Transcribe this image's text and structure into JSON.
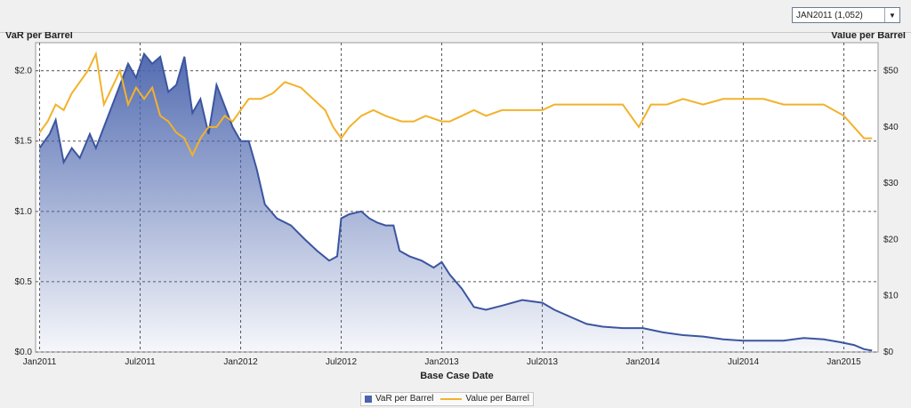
{
  "selector": {
    "value": "JAN2011 (1,052)",
    "arrow": "▼"
  },
  "chart_data": {
    "type": "line",
    "ylabel_left": "VaR per Barrel",
    "ylabel_right": "Value per Barrel",
    "xlabel": "Base Case Date",
    "y_left_range": [
      0,
      2.2
    ],
    "y_right_range": [
      0,
      55
    ],
    "y_left_ticks": [
      {
        "v": 0,
        "label": "$0.0"
      },
      {
        "v": 0.5,
        "label": "$0.5"
      },
      {
        "v": 1.0,
        "label": "$1.0"
      },
      {
        "v": 1.5,
        "label": "$1.5"
      },
      {
        "v": 2.0,
        "label": "$2.0"
      }
    ],
    "y_right_ticks": [
      {
        "v": 0,
        "label": "$0"
      },
      {
        "v": 10,
        "label": "$10"
      },
      {
        "v": 20,
        "label": "$20"
      },
      {
        "v": 30,
        "label": "$30"
      },
      {
        "v": 40,
        "label": "$40"
      },
      {
        "v": 50,
        "label": "$50"
      }
    ],
    "x_range": [
      2010.98,
      2015.17
    ],
    "x_ticks": [
      {
        "v": 2011.0,
        "label": "Jan2011"
      },
      {
        "v": 2011.5,
        "label": "Jul2011"
      },
      {
        "v": 2012.0,
        "label": "Jan2012"
      },
      {
        "v": 2012.5,
        "label": "Jul2012"
      },
      {
        "v": 2013.0,
        "label": "Jan2013"
      },
      {
        "v": 2013.5,
        "label": "Jul2013"
      },
      {
        "v": 2014.0,
        "label": "Jan2014"
      },
      {
        "v": 2014.5,
        "label": "Jul2014"
      },
      {
        "v": 2015.0,
        "label": "Jan2015"
      }
    ],
    "grid": true,
    "legend": "bottom-center",
    "series": [
      {
        "name": "VaR per Barrel",
        "axis": "left",
        "color": "#4a64ad",
        "style": "area",
        "points": [
          [
            2011.0,
            1.45
          ],
          [
            2011.05,
            1.55
          ],
          [
            2011.08,
            1.65
          ],
          [
            2011.12,
            1.35
          ],
          [
            2011.16,
            1.45
          ],
          [
            2011.2,
            1.38
          ],
          [
            2011.25,
            1.55
          ],
          [
            2011.28,
            1.45
          ],
          [
            2011.32,
            1.6
          ],
          [
            2011.36,
            1.75
          ],
          [
            2011.4,
            1.9
          ],
          [
            2011.44,
            2.05
          ],
          [
            2011.48,
            1.95
          ],
          [
            2011.52,
            2.12
          ],
          [
            2011.56,
            2.05
          ],
          [
            2011.6,
            2.1
          ],
          [
            2011.64,
            1.85
          ],
          [
            2011.68,
            1.9
          ],
          [
            2011.72,
            2.1
          ],
          [
            2011.76,
            1.7
          ],
          [
            2011.8,
            1.8
          ],
          [
            2011.84,
            1.55
          ],
          [
            2011.88,
            1.9
          ],
          [
            2011.92,
            1.75
          ],
          [
            2011.96,
            1.6
          ],
          [
            2012.0,
            1.5
          ],
          [
            2012.04,
            1.5
          ],
          [
            2012.08,
            1.3
          ],
          [
            2012.12,
            1.05
          ],
          [
            2012.18,
            0.95
          ],
          [
            2012.25,
            0.9
          ],
          [
            2012.32,
            0.8
          ],
          [
            2012.38,
            0.72
          ],
          [
            2012.44,
            0.65
          ],
          [
            2012.48,
            0.68
          ],
          [
            2012.5,
            0.95
          ],
          [
            2012.54,
            0.98
          ],
          [
            2012.6,
            1.0
          ],
          [
            2012.64,
            0.95
          ],
          [
            2012.68,
            0.92
          ],
          [
            2012.72,
            0.9
          ],
          [
            2012.76,
            0.9
          ],
          [
            2012.79,
            0.72
          ],
          [
            2012.84,
            0.68
          ],
          [
            2012.9,
            0.65
          ],
          [
            2012.96,
            0.6
          ],
          [
            2013.0,
            0.64
          ],
          [
            2013.04,
            0.55
          ],
          [
            2013.1,
            0.45
          ],
          [
            2013.16,
            0.32
          ],
          [
            2013.22,
            0.3
          ],
          [
            2013.3,
            0.33
          ],
          [
            2013.4,
            0.37
          ],
          [
            2013.5,
            0.35
          ],
          [
            2013.56,
            0.3
          ],
          [
            2013.64,
            0.25
          ],
          [
            2013.72,
            0.2
          ],
          [
            2013.8,
            0.18
          ],
          [
            2013.9,
            0.17
          ],
          [
            2014.0,
            0.17
          ],
          [
            2014.1,
            0.14
          ],
          [
            2014.2,
            0.12
          ],
          [
            2014.3,
            0.11
          ],
          [
            2014.4,
            0.09
          ],
          [
            2014.5,
            0.08
          ],
          [
            2014.6,
            0.08
          ],
          [
            2014.7,
            0.08
          ],
          [
            2014.8,
            0.1
          ],
          [
            2014.9,
            0.09
          ],
          [
            2014.98,
            0.07
          ],
          [
            2015.05,
            0.05
          ],
          [
            2015.1,
            0.02
          ],
          [
            2015.14,
            0.01
          ]
        ]
      },
      {
        "name": "Value per Barrel",
        "axis": "right",
        "color": "#f2b22a",
        "style": "line",
        "points": [
          [
            2011.0,
            39
          ],
          [
            2011.04,
            41
          ],
          [
            2011.08,
            44
          ],
          [
            2011.12,
            43
          ],
          [
            2011.16,
            46
          ],
          [
            2011.2,
            48
          ],
          [
            2011.24,
            50
          ],
          [
            2011.28,
            53
          ],
          [
            2011.32,
            44
          ],
          [
            2011.36,
            47
          ],
          [
            2011.4,
            50
          ],
          [
            2011.44,
            44
          ],
          [
            2011.48,
            47
          ],
          [
            2011.52,
            45
          ],
          [
            2011.56,
            47
          ],
          [
            2011.6,
            42
          ],
          [
            2011.64,
            41
          ],
          [
            2011.68,
            39
          ],
          [
            2011.72,
            38
          ],
          [
            2011.76,
            35
          ],
          [
            2011.8,
            38
          ],
          [
            2011.84,
            40
          ],
          [
            2011.88,
            40
          ],
          [
            2011.92,
            42
          ],
          [
            2011.96,
            41
          ],
          [
            2012.0,
            43
          ],
          [
            2012.04,
            45
          ],
          [
            2012.1,
            45
          ],
          [
            2012.16,
            46
          ],
          [
            2012.22,
            48
          ],
          [
            2012.3,
            47
          ],
          [
            2012.36,
            45
          ],
          [
            2012.42,
            43
          ],
          [
            2012.46,
            40
          ],
          [
            2012.5,
            38
          ],
          [
            2012.54,
            40
          ],
          [
            2012.6,
            42
          ],
          [
            2012.66,
            43
          ],
          [
            2012.72,
            42
          ],
          [
            2012.8,
            41
          ],
          [
            2012.86,
            41
          ],
          [
            2012.92,
            42
          ],
          [
            2013.0,
            41
          ],
          [
            2013.04,
            41
          ],
          [
            2013.1,
            42
          ],
          [
            2013.16,
            43
          ],
          [
            2013.22,
            42
          ],
          [
            2013.3,
            43
          ],
          [
            2013.4,
            43
          ],
          [
            2013.5,
            43
          ],
          [
            2013.56,
            44
          ],
          [
            2013.62,
            44
          ],
          [
            2013.7,
            44
          ],
          [
            2013.8,
            44
          ],
          [
            2013.9,
            44
          ],
          [
            2013.98,
            40
          ],
          [
            2014.04,
            44
          ],
          [
            2014.12,
            44
          ],
          [
            2014.2,
            45
          ],
          [
            2014.3,
            44
          ],
          [
            2014.4,
            45
          ],
          [
            2014.5,
            45
          ],
          [
            2014.6,
            45
          ],
          [
            2014.7,
            44
          ],
          [
            2014.8,
            44
          ],
          [
            2014.9,
            44
          ],
          [
            2015.0,
            42
          ],
          [
            2015.05,
            40
          ],
          [
            2015.1,
            38
          ],
          [
            2015.14,
            38
          ]
        ]
      }
    ]
  }
}
